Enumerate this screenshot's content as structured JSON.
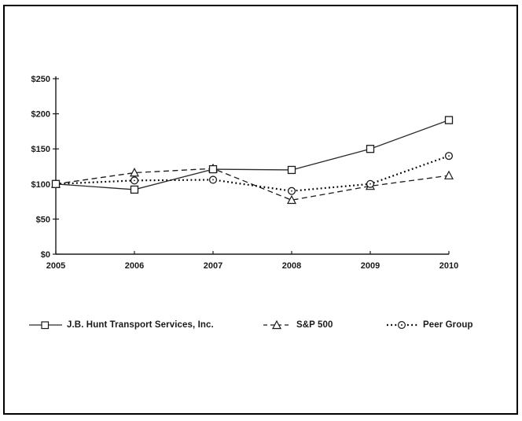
{
  "window": {
    "background": "#ffffff",
    "border_color": "#000000"
  },
  "chart_data": {
    "type": "line",
    "title": "",
    "xlabel": "",
    "ylabel": "",
    "categories": [
      "2005",
      "2006",
      "2007",
      "2008",
      "2009",
      "2010"
    ],
    "series": [
      {
        "name": "J.B. Hunt Transport Services, Inc.",
        "marker": "square",
        "line_style": "solid",
        "color": "#2b2b2b",
        "values": [
          100,
          92,
          121,
          120,
          150,
          191
        ]
      },
      {
        "name": "S&P 500",
        "marker": "triangle",
        "line_style": "dashed",
        "color": "#1a1a1a",
        "values": [
          100,
          116,
          122,
          77,
          97,
          112
        ]
      },
      {
        "name": "Peer Group",
        "marker": "circle-dot",
        "line_style": "dotted",
        "color": "#000000",
        "values": [
          100,
          105,
          106,
          90,
          100,
          140
        ]
      }
    ],
    "ylim": [
      0,
      250
    ],
    "yticks": [
      0,
      50,
      100,
      150,
      200,
      250
    ],
    "ytick_labels": [
      "$0",
      "$50",
      "$100",
      "$150",
      "$200",
      "$250"
    ],
    "grid": false,
    "legend_position": "bottom",
    "axis_color": "#1a1a1a",
    "label_color": "#1a1a1a"
  }
}
